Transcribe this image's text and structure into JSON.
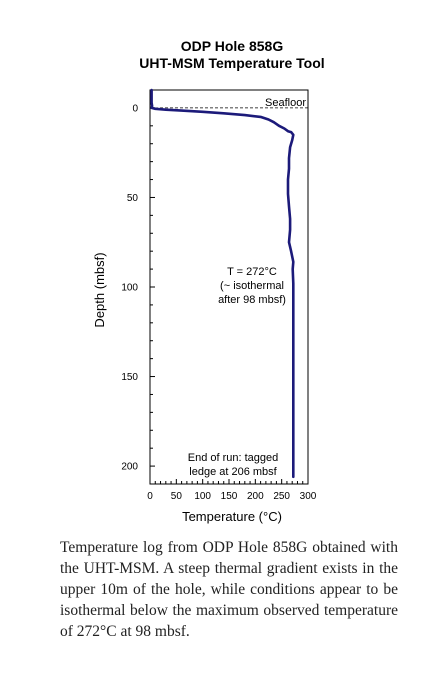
{
  "chart_data": {
    "type": "line",
    "title": [
      "ODP Hole 858G",
      "UHT-MSM Temperature Tool"
    ],
    "xlabel": "Temperature  (°C)",
    "ylabel": "Depth (mbsf)",
    "xlim": [
      0,
      300
    ],
    "ylim": [
      210,
      -10
    ],
    "y_inverted": true,
    "grid": false,
    "x_major_ticks": [
      0,
      50,
      100,
      150,
      200,
      250,
      300
    ],
    "x_minor_step": 10,
    "y_major_ticks": [
      0,
      50,
      100,
      150,
      200
    ],
    "y_minor_step": 10,
    "seafloor_depth": 0,
    "series": [
      {
        "x": [
          3,
          3,
          3,
          4,
          3,
          10,
          30,
          60,
          100,
          140,
          180,
          210,
          225,
          235,
          245,
          255,
          262,
          268,
          272,
          270,
          266,
          264,
          264,
          262,
          262,
          264,
          266,
          266,
          264,
          268,
          272,
          271,
          272,
          272,
          272,
          272,
          272,
          272,
          272
        ],
        "y": [
          -10,
          -6,
          -3,
          -1,
          0,
          0.5,
          1,
          1.5,
          2.2,
          3,
          4,
          5,
          6.5,
          8,
          10,
          11.5,
          13,
          13.5,
          15,
          18,
          22,
          28,
          34,
          40,
          48,
          55,
          62,
          68,
          75,
          80,
          86,
          90,
          98,
          110,
          130,
          150,
          170,
          190,
          206
        ],
        "color": "#1c1a7a"
      }
    ],
    "annotations": {
      "seafloor": "Seafloor",
      "isothermal": [
        "T = 272°C",
        "(~ isothermal",
        "after 98 mbsf)"
      ],
      "end_of_run": [
        "End of run: tagged",
        "ledge at 206 mbsf"
      ]
    }
  },
  "caption": "Temperature log from ODP Hole 858G obtained with the UHT-MSM. A steep thermal gradient exists in the upper 10m of the hole, while conditions appear to be isothermal below the maximum observed temperature of 272°C at 98 mbsf."
}
